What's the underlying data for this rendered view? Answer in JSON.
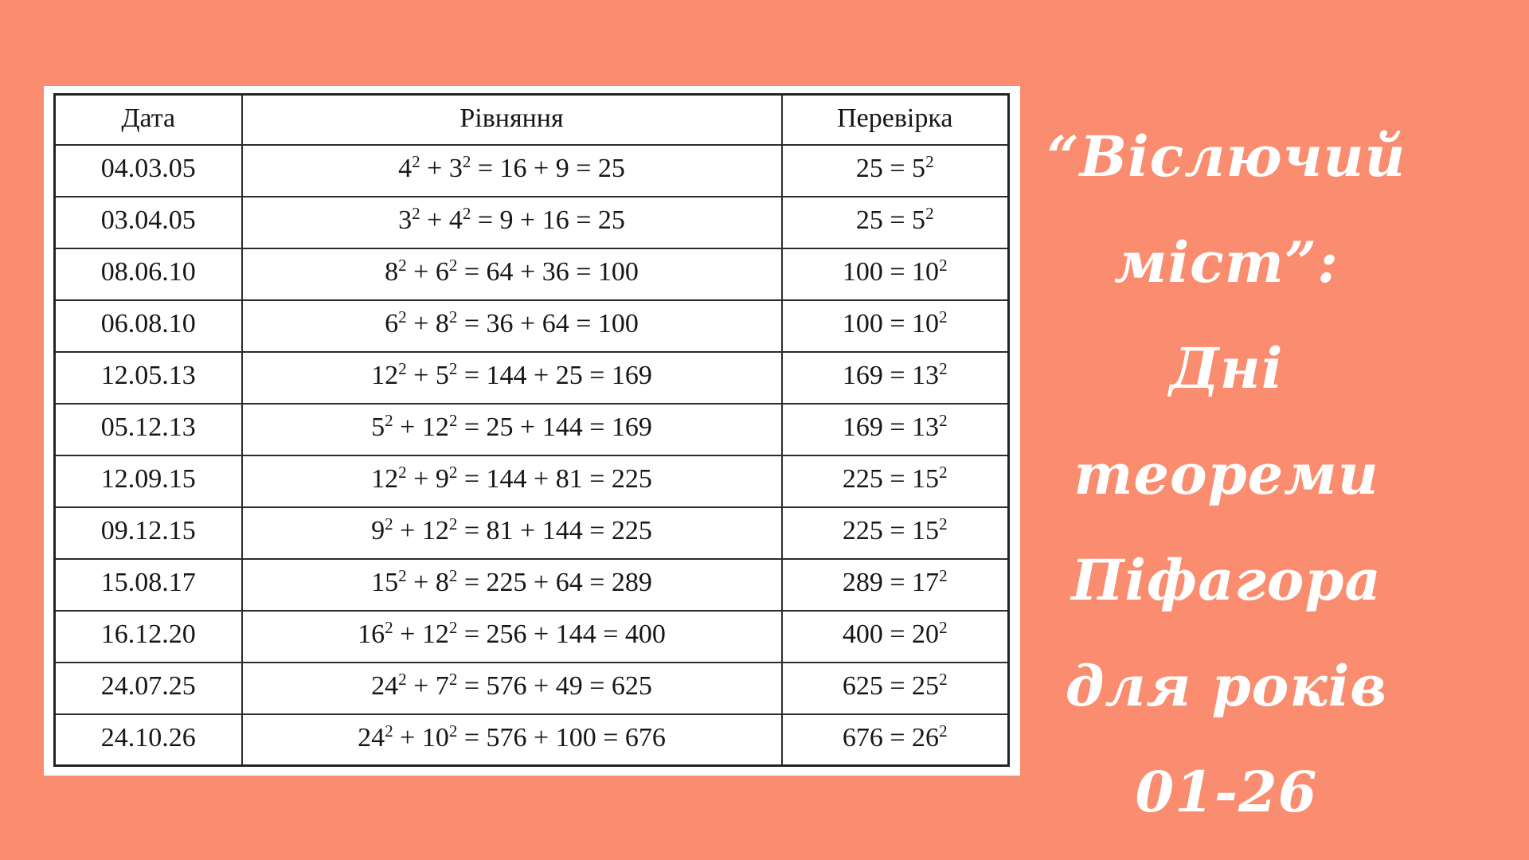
{
  "background_color": "#fa8c6f",
  "panel": {
    "background_color": "#ffffff"
  },
  "table": {
    "headers": [
      "Дата",
      "Рівняння",
      "Перевірка"
    ],
    "rows": [
      {
        "date": "04.03.05",
        "equation": "4² + 3² = 16 + 9 = 25",
        "check": "25 = 5²"
      },
      {
        "date": "03.04.05",
        "equation": "3² + 4² = 9 + 16 = 25",
        "check": "25 = 5²"
      },
      {
        "date": "08.06.10",
        "equation": "8² + 6² = 64 + 36 = 100",
        "check": "100 = 10²"
      },
      {
        "date": "06.08.10",
        "equation": "6² + 8² = 36 + 64 = 100",
        "check": "100 = 10²"
      },
      {
        "date": "12.05.13",
        "equation": "12² + 5² = 144 + 25 = 169",
        "check": "169 = 13²"
      },
      {
        "date": "05.12.13",
        "equation": "5² + 12² = 25 + 144 = 169",
        "check": "169 = 13²"
      },
      {
        "date": "12.09.15",
        "equation": "12² + 9² = 144 + 81 = 225",
        "check": "225 = 15²"
      },
      {
        "date": "09.12.15",
        "equation": "9² + 12² = 81 + 144 = 225",
        "check": "225 = 15²"
      },
      {
        "date": "15.08.17",
        "equation": "15² + 8² = 225 + 64 = 289",
        "check": "289 = 17²"
      },
      {
        "date": "16.12.20",
        "equation": "16² + 12² = 256 + 144 = 400",
        "check": "400 = 20²"
      },
      {
        "date": "24.07.25",
        "equation": "24² + 7² = 576 + 49 = 625",
        "check": "625 = 25²"
      },
      {
        "date": "24.10.26",
        "equation": "24² + 10² = 576 + 100 = 676",
        "check": "676 = 26²"
      }
    ]
  },
  "poster": {
    "text_color": "#ffffff",
    "lines": [
      "“Віслючий",
      "міст”:",
      "Дні теореми",
      "Піфагора",
      "для років",
      "01-26"
    ]
  }
}
